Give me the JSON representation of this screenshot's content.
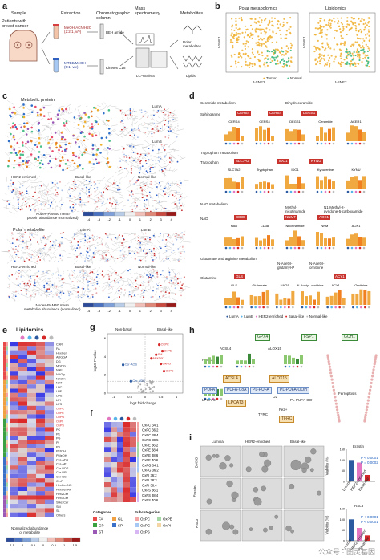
{
  "panels": {
    "a": {
      "label": "a",
      "sample": "Sample",
      "patients": "Patients with\nbreast cancer",
      "extraction": "Extraction",
      "chromatographic": "Chromatographic\ncolumn",
      "mass_spec": "Mass\nspectrometry",
      "metabolites": "Metabolites",
      "solvent1": "MeOH/ACN/H2O\n(2:2:1, v/v)",
      "solvent2": "MTBE/MeOH\n(5:1, v/v)",
      "column1": "BEH amide",
      "column2": "Kinetex C18",
      "instrument": "LC–MS/MS",
      "polar": "Polar\nmetabolites",
      "lipids": "Lipids"
    },
    "b": {
      "label": "b",
      "title_left": "Polar metabolomics",
      "title_right": "Lipidomics",
      "xlabel": "t-SNE2",
      "ylabel": "t-SNE1",
      "legend_tumor": "Tumor",
      "legend_normal": "Normal",
      "ticks_y": [
        "20",
        "0",
        "-20"
      ],
      "ticks_x_left": [
        "-30",
        "-20",
        "-10",
        "0",
        "10",
        "20",
        "30"
      ],
      "ticks_x_right": [
        "-20",
        "0",
        "20"
      ],
      "colors": {
        "tumor": "#f0b030",
        "normal": "#4cc08a"
      }
    },
    "c": {
      "label": "c",
      "metabolic_protein": "Metabolic protein",
      "lumA": "LumA",
      "lumB": "LumB",
      "her2": "HER2-enriched",
      "basal": "Basal-like",
      "normal": "Normal-like",
      "legend_protein": "Nodes-PAM50 mean\nprotein abundance (normalized)",
      "polar": "Polar metabolite",
      "legend_metab": "Nodes-PAM50 mean\nmetabolite abundance (normalized)",
      "scale": [
        "-4",
        "-3",
        "-2",
        "-1",
        "0",
        "1",
        "2",
        "3",
        "4"
      ]
    },
    "d": {
      "label": "d",
      "ceramide": "Ceramide metabolism",
      "dihydro": "Dihydroceramide",
      "sphinganine": "Sphinganine",
      "cer_genes": [
        "CERS4",
        "CERS4",
        "DEGS1"
      ],
      "cer_small": [
        "CERS4",
        "CERS4",
        "DEGS1",
        "Ceramide",
        "ACER1"
      ],
      "tryptophan_title": "Tryptophan metabolism",
      "tryptophan": "Tryptophan",
      "trp_genes": [
        "SLC7A2",
        "IDO1",
        "KYNU"
      ],
      "trp_small": [
        "SLC7A2",
        "Tryptophan",
        "IDO1",
        "Kynurenine",
        "KYNU"
      ],
      "nad_title": "NAD metabolism",
      "nad": "NAD",
      "nad_genes": [
        "CD38",
        "NNMT",
        "AOX1"
      ],
      "nad_small": [
        "NAD",
        "CD38",
        "Nicotinamide",
        "NNMT",
        "AOX1"
      ],
      "nad_m1": "Methyl-\nnicotinamide",
      "nad_m2": "N1-Methyl-2-\npyridone-5-carboxamide",
      "glu_title": "Glutamate and arginine metabolism",
      "glutamine": "Glutamine",
      "glu_genes": [
        "GLS",
        "ACY1"
      ],
      "glu_small": [
        "GLS",
        "Glutamate",
        "NAGS",
        "N-Acetyl-\nornithine",
        "ACY1",
        "Ornithine"
      ],
      "glu_m1": "N-Acetyl-\nglutamyl-P",
      "glu_m2": "N-Acetyl-\nornithine",
      "legend": [
        "LumA",
        "LumB",
        "HER2-enriched",
        "Basal-like",
        "Normal-like"
      ],
      "colors": {
        "lumA": "#2c5aa0",
        "lumB": "#56b4e9",
        "her2": "#e377c2",
        "basal": "#d62728",
        "normal": "#bbbbbb"
      }
    },
    "e": {
      "label": "e",
      "title": "Lipidomics",
      "rows": [
        "CAR",
        "FA",
        "HexCer",
        "ADGGA",
        "DG",
        "MGDG",
        "NAE",
        "NAGly",
        "NAOrn",
        "NAT",
        "LPC",
        "LPE",
        "LPG",
        "LPI",
        "LPS",
        "OxPC",
        "OxPE",
        "OxPG",
        "OxPI",
        "OxPS",
        "PC",
        "PE",
        "PG",
        "PI",
        "PS",
        "PEtOH",
        "PMeOH",
        "Cer-ADS",
        "Cer-AP",
        "Cer-NDS",
        "Cer-NP",
        "Cer-NS",
        "CerP",
        "HexCer-NS",
        "HexCer-AP",
        "Hex2Cer",
        "Hex3Cer",
        "SHexCer",
        "SM",
        "SL",
        "Others"
      ],
      "highlight": [
        "OxPC",
        "OxPE",
        "OxPG",
        "OxPI",
        "OxPS"
      ],
      "legend_title": "Normalized abundance\nof metabolite",
      "scale": [
        "-1.5",
        "-1",
        "-0.5",
        "0",
        "0.5",
        "1",
        "1.5"
      ]
    },
    "f": {
      "label": "f",
      "rows": [
        "OxPC 34:1",
        "OxPC 36:2",
        "OxPC 38:4",
        "OxPC 38:5",
        "OxPE 36:2",
        "OxPE 38:4",
        "OxPE 38:6",
        "OxPE 40:6",
        "OxPG 34:1",
        "OxPG 36:2",
        "OxPI 36:2",
        "OxPI 38:3",
        "OxPI 38:4",
        "OxPS 36:1",
        "OxPS 38:4",
        "OxPS 40:6"
      ],
      "categories_title": "Categories",
      "categories": [
        "FA",
        "GL",
        "GP",
        "SP",
        "ST"
      ],
      "subcat_title": "Subcategories",
      "subcats": [
        "OxPC",
        "OxPE",
        "OxPG",
        "OxPI",
        "OxPS"
      ]
    },
    "g": {
      "label": "g",
      "left": "Non-basal",
      "right": "Basal-like",
      "xlabel": "log2 fold change",
      "ylabel": "-log10 P value",
      "ticks_x": [
        "-1",
        "-0.5",
        "0",
        "0.5",
        "1"
      ],
      "ticks_y": [
        "0",
        "2",
        "4",
        "6"
      ],
      "points": [
        {
          "name": "Cer-AOS",
          "x": -0.7,
          "y": 3.1
        },
        {
          "name": "Cer-NDS",
          "x": -0.45,
          "y": 1.3
        },
        {
          "name": "HexCer",
          "x": 0.2,
          "y": 3.8
        },
        {
          "name": "OxPC",
          "x": 0.45,
          "y": 5.3
        },
        {
          "name": "OxPE",
          "x": 0.55,
          "y": 4.6
        },
        {
          "name": "OxPG",
          "x": 0.5,
          "y": 3.2
        },
        {
          "name": "OxPS",
          "x": 0.6,
          "y": 2.4
        },
        {
          "name": "SM",
          "x": 0.35,
          "y": 4.2
        }
      ]
    },
    "h": {
      "label": "h",
      "gpx4": "GPX4",
      "fsp1": "FSP1",
      "gch1": "GCH1",
      "pufa": "PUFA",
      "acsl4": "ACSL4",
      "pufa_coa": "PUFA-CoA",
      "lpcat3": "LPCAT3",
      "pl_pufa": "PL-PUFA",
      "alox15": "ALOX15",
      "pl_pufa_ooh": "PL-PUFA-OOH",
      "pl_pufa_oo": "PL-PUFA-OO•",
      "o2": "O2",
      "fe": "Fe2+",
      "tfrc": "TFRC",
      "ferroptosis": "Ferroptosis"
    },
    "i": {
      "label": "i",
      "cols": [
        "Luminal",
        "HER2-enriched",
        "Basal-like"
      ],
      "rows": [
        "DMSO",
        "Erastin",
        "RSL3"
      ],
      "erastin": "Erastin",
      "rsl3": "RSL3",
      "ylabel": "Viability (%)",
      "bar_labels": [
        "Luminal",
        "HER2-enriched",
        "Basal-like"
      ],
      "erastin_values": [
        100,
        88,
        30
      ],
      "rsl3_values": [
        100,
        60,
        25
      ],
      "p1": "P < 0.0001",
      "p2": "P = 0.0002",
      "ticks": [
        "0",
        "50",
        "100",
        "150"
      ]
    }
  },
  "watermark": "公众号 · 图灵基因"
}
